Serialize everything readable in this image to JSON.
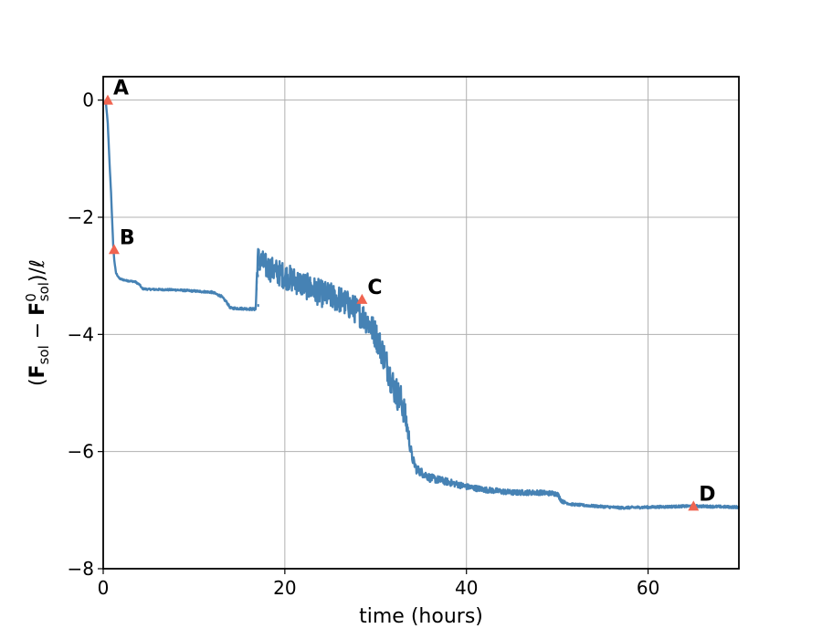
{
  "chart_data": {
    "type": "scatter",
    "title": "",
    "xlabel": "time (hours)",
    "ylabel": "(F_sol − F⁰_sol)/ℓ",
    "ylabel_parts": {
      "open": "(",
      "f1": "F",
      "sub1": "sol",
      "minus": " − ",
      "f2": "F",
      "sup2": "0",
      "sub2": "sol",
      "close": ")/ℓ"
    },
    "xlim": [
      0,
      70
    ],
    "ylim": [
      -8,
      0.4
    ],
    "xticks": [
      0,
      20,
      40,
      60
    ],
    "xtick_labels": [
      "0",
      "20",
      "40",
      "60"
    ],
    "yticks": [
      0,
      -2,
      -4,
      -6,
      -8
    ],
    "ytick_labels": [
      "0",
      "−2",
      "−4",
      "−6",
      "−8"
    ],
    "grid": true,
    "series": [
      {
        "color": "#4682b4",
        "trend": [
          [
            0.3,
            -0.05
          ],
          [
            0.5,
            -0.4
          ],
          [
            0.7,
            -1.1
          ],
          [
            0.9,
            -1.7
          ],
          [
            1.0,
            -2.1
          ],
          [
            1.1,
            -2.45
          ],
          [
            1.2,
            -2.7
          ],
          [
            1.4,
            -2.95
          ],
          [
            1.8,
            -3.05
          ],
          [
            2.5,
            -3.08
          ],
          [
            3.5,
            -3.1
          ],
          [
            4.0,
            -3.15
          ],
          [
            4.3,
            -3.22
          ],
          [
            5.0,
            -3.23
          ],
          [
            8.0,
            -3.24
          ],
          [
            10.0,
            -3.26
          ],
          [
            12.0,
            -3.28
          ],
          [
            13.0,
            -3.35
          ],
          [
            13.6,
            -3.45
          ],
          [
            14.0,
            -3.55
          ],
          [
            16.8,
            -3.57
          ],
          [
            17.0,
            -2.7
          ],
          [
            18.0,
            -2.85
          ],
          [
            20.0,
            -3.0
          ],
          [
            22.0,
            -3.15
          ],
          [
            24.0,
            -3.3
          ],
          [
            26.0,
            -3.4
          ],
          [
            27.0,
            -3.5
          ],
          [
            28.0,
            -3.6
          ],
          [
            29.0,
            -3.75
          ],
          [
            30.0,
            -4.0
          ],
          [
            31.0,
            -4.4
          ],
          [
            32.0,
            -4.9
          ],
          [
            33.0,
            -5.2
          ],
          [
            33.5,
            -5.6
          ],
          [
            34.0,
            -6.1
          ],
          [
            34.5,
            -6.3
          ],
          [
            36.0,
            -6.45
          ],
          [
            38.0,
            -6.52
          ],
          [
            40.0,
            -6.6
          ],
          [
            42.0,
            -6.65
          ],
          [
            45.0,
            -6.7
          ],
          [
            48.0,
            -6.7
          ],
          [
            50.0,
            -6.72
          ],
          [
            50.5,
            -6.85
          ],
          [
            51.5,
            -6.9
          ],
          [
            54.0,
            -6.93
          ],
          [
            57.0,
            -6.96
          ],
          [
            60.0,
            -6.95
          ],
          [
            65.0,
            -6.93
          ],
          [
            70.0,
            -6.95
          ]
        ],
        "noise": [
          [
            0,
            0.01
          ],
          [
            16.8,
            0.02
          ],
          [
            17.0,
            0.22
          ],
          [
            29.0,
            0.24
          ],
          [
            33.0,
            0.28
          ],
          [
            34.0,
            0.08
          ],
          [
            40.0,
            0.05
          ],
          [
            50.0,
            0.04
          ],
          [
            51.0,
            0.02
          ],
          [
            70.0,
            0.02
          ]
        ]
      }
    ],
    "annotations": [
      {
        "label": "A",
        "x": 0.5,
        "y": 0.0,
        "color": "#f06450"
      },
      {
        "label": "B",
        "x": 1.2,
        "y": -2.55,
        "color": "#f06450"
      },
      {
        "label": "C",
        "x": 28.5,
        "y": -3.4,
        "color": "#f06450"
      },
      {
        "label": "D",
        "x": 65.0,
        "y": -6.93,
        "color": "#f06450"
      }
    ]
  }
}
